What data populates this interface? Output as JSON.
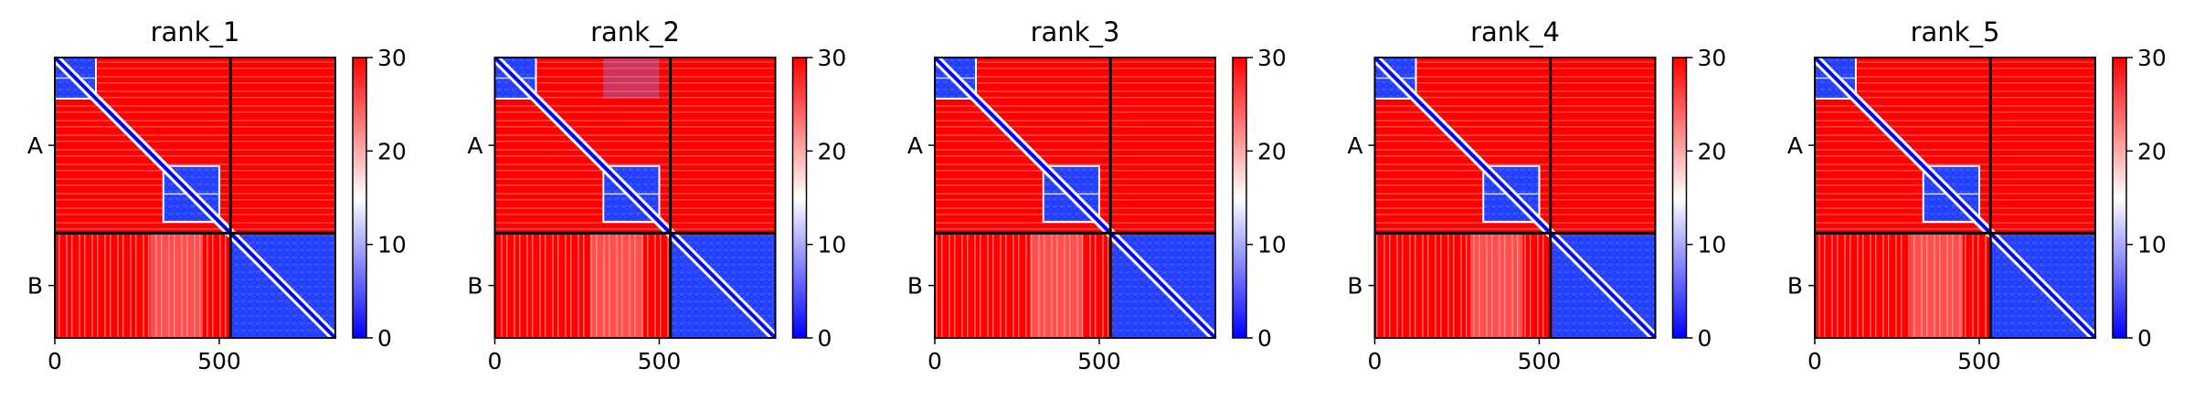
{
  "chart_data": {
    "type": "heatmap",
    "colormap": {
      "name": "bwr",
      "low": "#0000ff",
      "mid": "#ffffff",
      "high": "#ff0000"
    },
    "colorbar": {
      "range": [
        0,
        30
      ],
      "ticks": [
        "0",
        "10",
        "20",
        "30"
      ]
    },
    "x_range": [
      0,
      853
    ],
    "x_ticks": [
      {
        "value": 0,
        "label": "0"
      },
      {
        "value": 500,
        "label": "500"
      }
    ],
    "chain_boundary": 534,
    "chains": [
      {
        "label": "A",
        "range": [
          0,
          534
        ]
      },
      {
        "label": "B",
        "range": [
          534,
          853
        ]
      }
    ],
    "panels": [
      {
        "title": "rank_1",
        "domain_cross_contacts": false
      },
      {
        "title": "rank_2",
        "domain_cross_contacts": true
      },
      {
        "title": "rank_3",
        "domain_cross_contacts": false
      },
      {
        "title": "rank_4",
        "domain_cross_contacts": false
      },
      {
        "title": "rank_5",
        "domain_cross_contacts": false
      }
    ],
    "domains": [
      {
        "range": [
          0,
          125
        ]
      },
      {
        "range": [
          330,
          500
        ]
      }
    ],
    "grid": false,
    "legend": "none"
  }
}
